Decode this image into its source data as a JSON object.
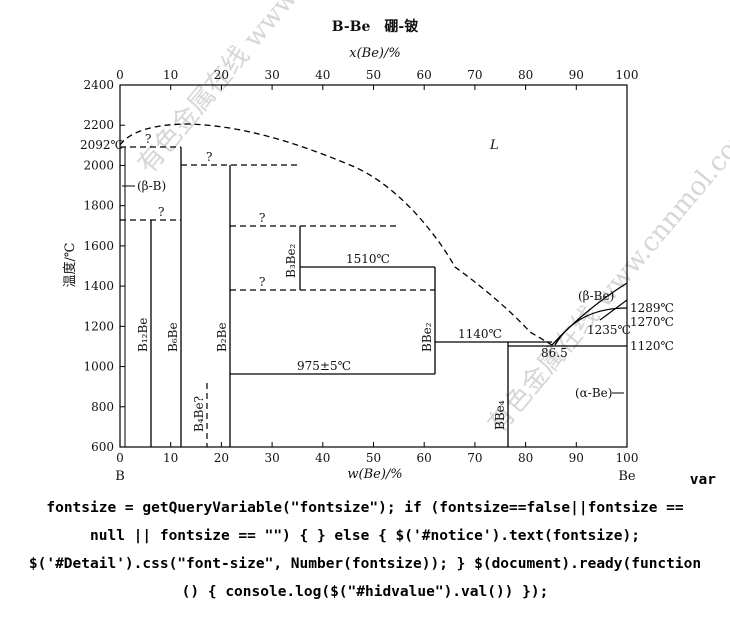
{
  "figure": {
    "title": "B-Be　硼-铍",
    "top_axis_label": "x(Be)/%",
    "bottom_axis_label": "w(Be)/%",
    "y_axis_label": "温度/℃",
    "element_left": "B",
    "element_right": "Be",
    "watermark": "有色金属在线 www.cnnmol.com"
  },
  "chart_data": {
    "type": "diagram",
    "bottom_axis": {
      "min": 0,
      "max": 100,
      "ticks": [
        0,
        10,
        20,
        30,
        40,
        50,
        60,
        70,
        80,
        90,
        100
      ]
    },
    "top_axis": {
      "min": 0,
      "max": 100,
      "ticks": [
        0,
        10,
        20,
        30,
        40,
        50,
        60,
        70,
        80,
        90,
        100
      ]
    },
    "y_axis": {
      "min": 600,
      "max": 2400,
      "ticks": [
        600,
        800,
        1000,
        1200,
        1400,
        1600,
        1800,
        2000,
        2200,
        2400
      ]
    },
    "phases": [
      "L",
      "(β-B)",
      "B₁₂Be",
      "B₆Be",
      "B₂Be",
      "B₄Be?",
      "B₃Be₂",
      "BBe₂",
      "BBe₄",
      "(β-Be)",
      "(α-Be)"
    ],
    "temperature_labels": [
      "2092℃",
      "1510℃",
      "1140℃",
      "975±5℃",
      "86.5",
      "1289℃",
      "1270℃",
      "1235℃",
      "1120℃"
    ],
    "question_marks": [
      "?",
      "?",
      "?",
      "?",
      "?"
    ]
  },
  "code_lines": [
    "var",
    "fontsize = getQueryVariable(\"fontsize\"); if (fontsize==false||fontsize ==",
    "null || fontsize == \"\") { } else { $('#notice').text(fontsize);",
    "$('#Detail').css(\"font-size\", Number(fontsize)); } $(document).ready(function",
    "() { console.log($(\"#hidvalue\").val()) });"
  ]
}
